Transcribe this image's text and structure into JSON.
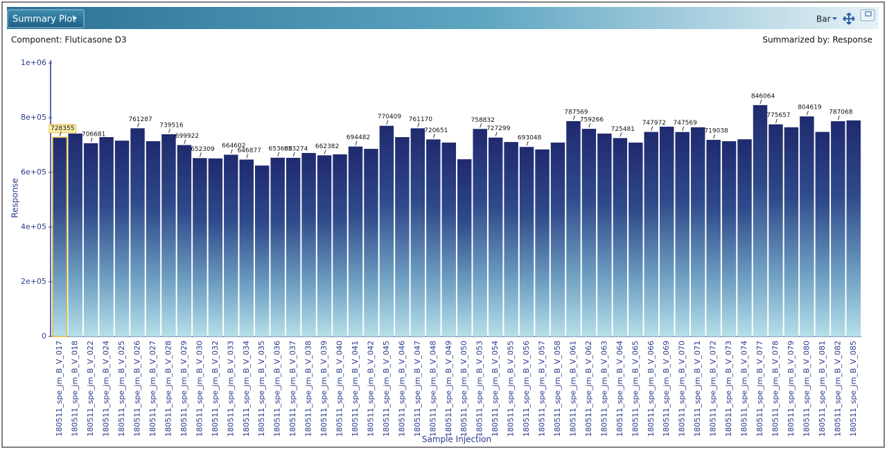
{
  "header": {
    "title": "Summary Plot",
    "chart_type_menu": "Bar"
  },
  "component": "Component: Fluticasone D3",
  "summarized_by": "Summarized by: Response",
  "chart_data": {
    "type": "bar",
    "ylabel": "Response",
    "xlabel": "Sample Injection",
    "color": "#1f2a6e",
    "ylim": [
      0,
      1000000
    ],
    "yticks": [
      0,
      {
        "value": 200000,
        "label": "2e+05"
      },
      {
        "value": 400000,
        "label": "4e+05"
      },
      {
        "value": 600000,
        "label": "6e+05"
      },
      {
        "value": 800000,
        "label": "8e+05"
      },
      {
        "value": 1000000,
        "label": "1e+06"
      }
    ],
    "categories": [
      "180511_spe_jm_B_V_017",
      "180511_spe_jm_B_V_018",
      "180511_spe_jm_B_V_022",
      "180511_spe_jm_B_V_024",
      "180511_spe_jm_B_V_025",
      "180511_spe_jm_B_V_026",
      "180511_spe_jm_B_V_027",
      "180511_spe_jm_B_V_028",
      "180511_spe_jm_B_V_029",
      "180511_spe_jm_B_V_030",
      "180511_spe_jm_B_V_032",
      "180511_spe_jm_B_V_033",
      "180511_spe_jm_B_V_034",
      "180511_spe_jm_B_V_035",
      "180511_spe_jm_B_V_036",
      "180511_spe_jm_B_V_037",
      "180511_spe_jm_B_V_038",
      "180511_spe_jm_B_V_039",
      "180511_spe_jm_B_V_040",
      "180511_spe_jm_B_V_041",
      "180511_spe_jm_B_V_042",
      "180511_spe_jm_B_V_045",
      "180511_spe_jm_B_V_046",
      "180511_spe_jm_B_V_047",
      "180511_spe_jm_B_V_048",
      "180511_spe_jm_B_V_049",
      "180511_spe_jm_B_V_050",
      "180511_spe_jm_B_V_053",
      "180511_spe_jm_B_V_054",
      "180511_spe_jm_B_V_055",
      "180511_spe_jm_B_V_056",
      "180511_spe_jm_B_V_057",
      "180511_spe_jm_B_V_058",
      "180511_spe_jm_B_V_061",
      "180511_spe_jm_B_V_062",
      "180511_spe_jm_B_V_063",
      "180511_spe_jm_B_V_064",
      "180511_spe_jm_B_V_065",
      "180511_spe_jm_B_V_066",
      "180511_spe_jm_B_V_069",
      "180511_spe_jm_B_V_070",
      "180511_spe_jm_B_V_071",
      "180511_spe_jm_B_V_072",
      "180511_spe_jm_B_V_073",
      "180511_spe_jm_B_V_074",
      "180511_spe_jm_B_V_077",
      "180511_spe_jm_B_V_078",
      "180511_spe_jm_B_V_079",
      "180511_spe_jm_B_V_080",
      "180511_spe_jm_B_V_081",
      "180511_spe_jm_B_V_082",
      "180511_spe_jm_B_V_085"
    ],
    "values": [
      728355,
      742000,
      706681,
      729000,
      716000,
      761287,
      714000,
      739516,
      699922,
      652309,
      651000,
      664602,
      646877,
      625000,
      653638,
      653274,
      671000,
      662382,
      666000,
      694482,
      686000,
      770409,
      729000,
      761170,
      720651,
      709000,
      648000,
      758832,
      727299,
      711000,
      693048,
      684000,
      709000,
      787569,
      759266,
      742000,
      725481,
      709000,
      747972,
      767000,
      747569,
      765000,
      719038,
      714000,
      721000,
      846064,
      775657,
      765000,
      804619,
      748000,
      787068,
      790000
    ],
    "value_labels": [
      "728355",
      null,
      "706681",
      null,
      null,
      "761287",
      null,
      "739516",
      "699922",
      "652309",
      null,
      "664602",
      "646877",
      null,
      "653638",
      "653274",
      null,
      "662382",
      null,
      "694482",
      null,
      "770409",
      null,
      "761170",
      "720651",
      null,
      null,
      "758832",
      "727299",
      null,
      "693048",
      null,
      null,
      "787569",
      "759266",
      null,
      "725481",
      null,
      "747972",
      null,
      "747569",
      null,
      "719038",
      null,
      null,
      "846064",
      "775657",
      null,
      "804619",
      null,
      "787068",
      null
    ]
  }
}
